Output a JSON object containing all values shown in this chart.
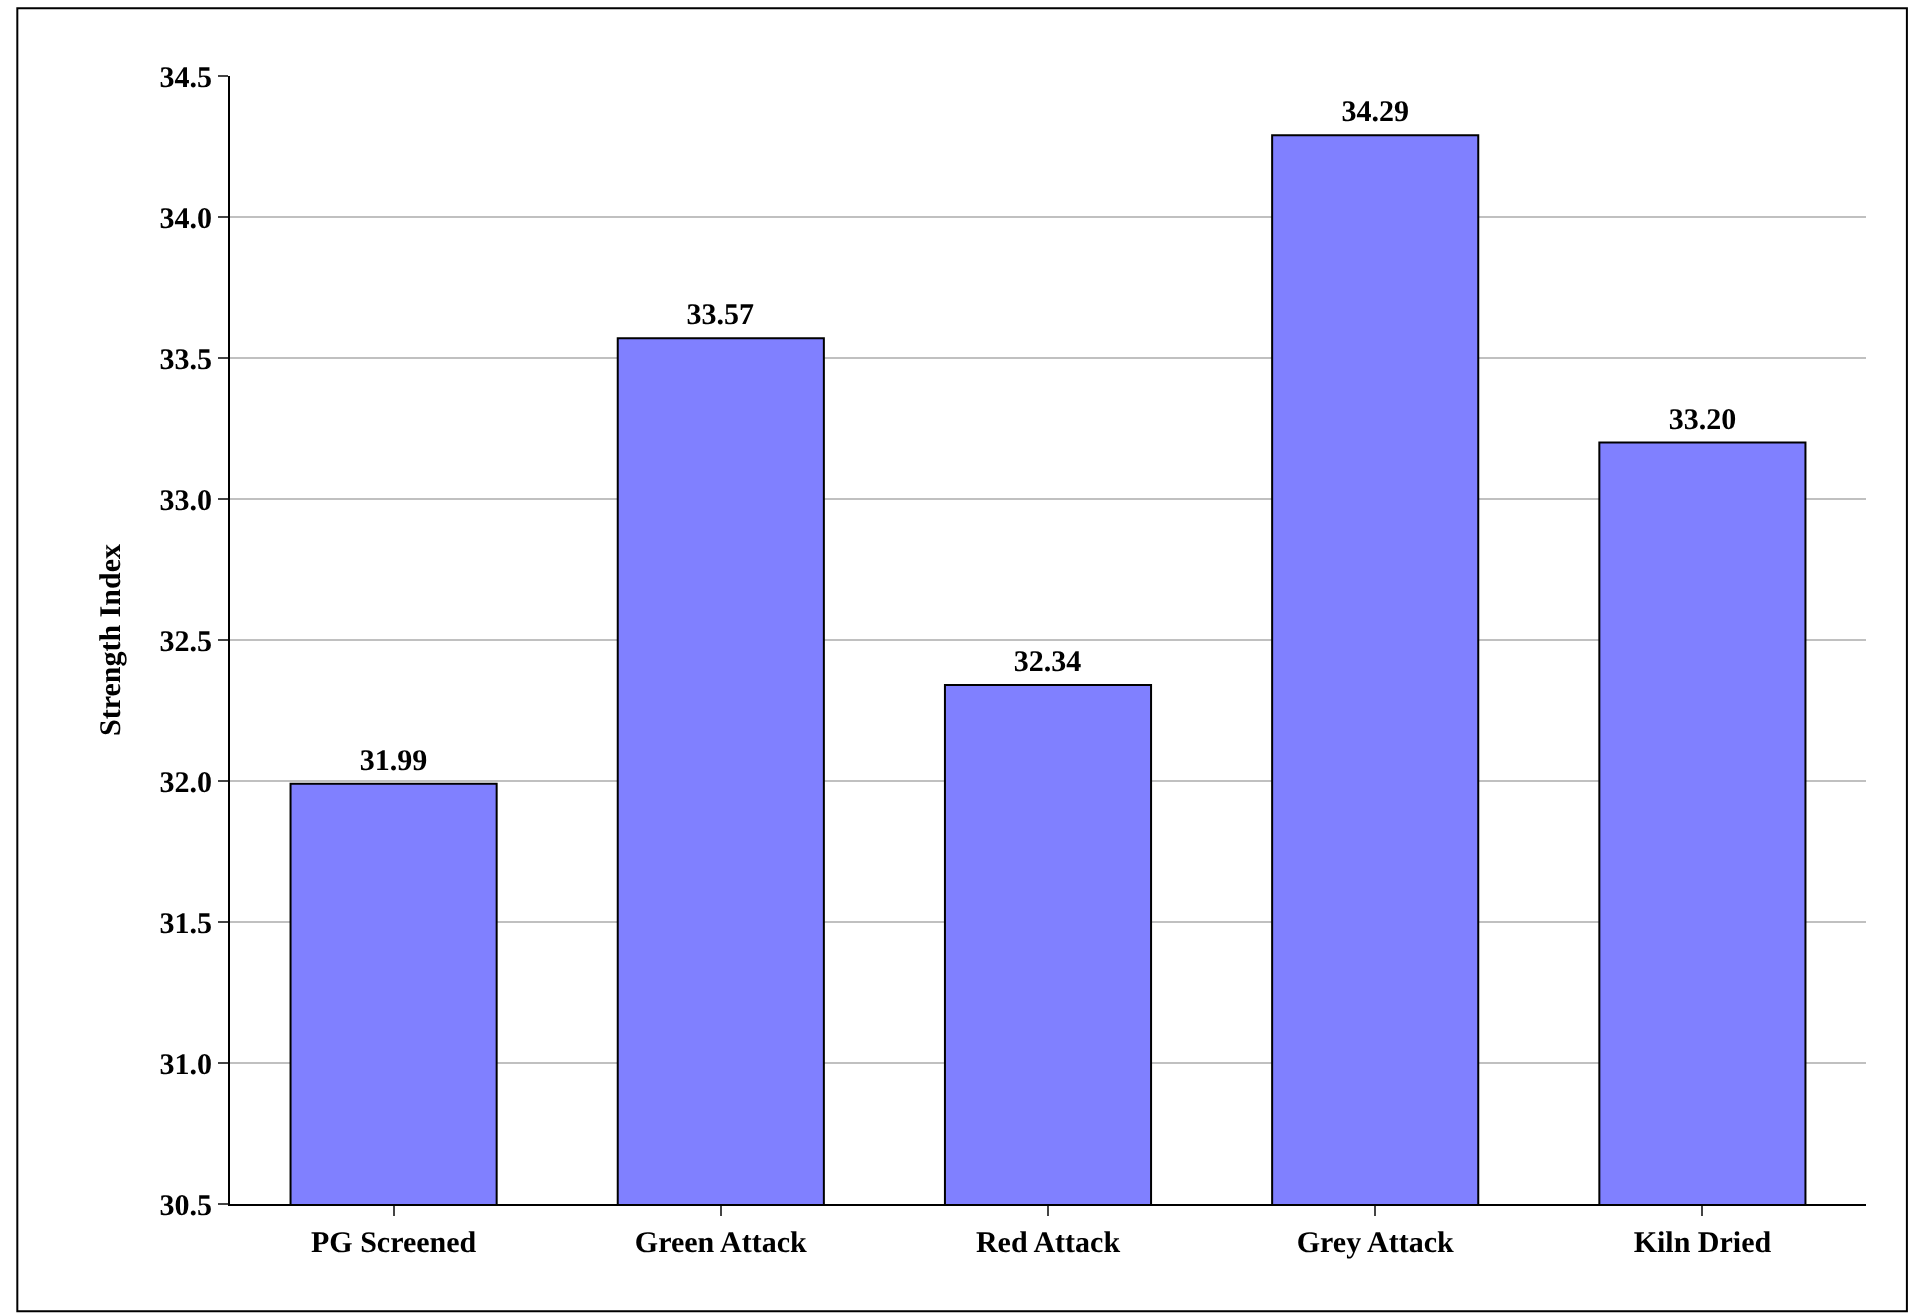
{
  "chart_data": {
    "type": "bar",
    "ylabel": "Strength Index",
    "categories": [
      "PG Screened",
      "Green Attack",
      "Red Attack",
      "Grey Attack",
      "Kiln Dried"
    ],
    "values": [
      31.99,
      33.57,
      32.34,
      34.29,
      33.2
    ],
    "value_labels": [
      "31.99",
      "33.57",
      "32.34",
      "34.29",
      "33.20"
    ],
    "color": "#8080ff",
    "ylim": [
      30.5,
      34.5
    ],
    "yticks": [
      30.5,
      {
        "value": 31,
        "label": "31.0"
      },
      31.5,
      {
        "value": 32,
        "label": "32.0"
      },
      32.5,
      {
        "value": 33,
        "label": "33.0"
      },
      33.5,
      {
        "value": 34,
        "label": "34.0"
      },
      34.5
    ],
    "grid": "y"
  }
}
